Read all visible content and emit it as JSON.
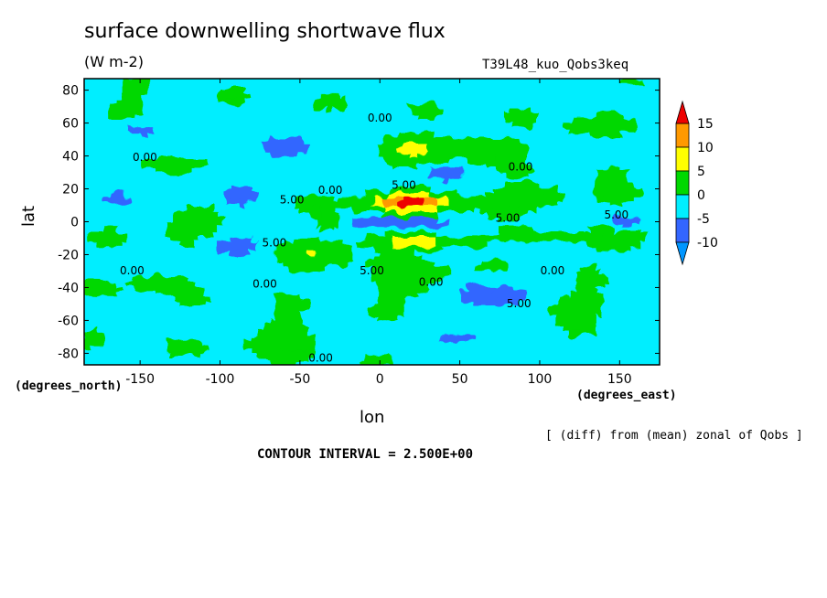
{
  "figure": {
    "title": "surface downwelling shortwave flux",
    "units": "(W m-2)",
    "run_label": "T39L48_kuo_Qobs3keq",
    "x_unit_left": "(degrees_north)",
    "x_unit_right": "(degrees_east)",
    "xlabel": "lon",
    "ylabel": "lat",
    "note": "[ (diff) from (mean) zonal of Qobs ]",
    "contour_interval": "CONTOUR INTERVAL = 2.500E+00"
  },
  "chart_data": {
    "type": "heatmap",
    "title": "surface downwelling shortwave flux",
    "subtitle": "(W m-2)",
    "xlabel": "lon",
    "ylabel": "lat",
    "xlim": [
      -185,
      175
    ],
    "ylim": [
      -87,
      87
    ],
    "x_ticks": [
      -150,
      -100,
      -50,
      0,
      50,
      100,
      150
    ],
    "y_ticks": [
      -80,
      -60,
      -40,
      -20,
      0,
      20,
      40,
      60,
      80
    ],
    "contour_interval": 2.5,
    "colorbar": {
      "levels": [
        -10,
        -5,
        0,
        5,
        10,
        15
      ],
      "labels": [
        "15",
        "10",
        "5",
        "0",
        "-5",
        "-10"
      ],
      "bins": [
        {
          "range": [
            -15,
            -10
          ],
          "color": "#0096ff"
        },
        {
          "range": [
            -10,
            -5
          ],
          "color": "#3366ff"
        },
        {
          "range": [
            -5,
            0
          ],
          "color": "#00eeff"
        },
        {
          "range": [
            0,
            5
          ],
          "color": "#00d800"
        },
        {
          "range": [
            5,
            10
          ],
          "color": "#ffff00"
        },
        {
          "range": [
            10,
            15
          ],
          "color": "#ff9900"
        },
        {
          "range": [
            15,
            20
          ],
          "color": "#ee0000"
        }
      ]
    },
    "contour_labels": [
      {
        "text": "0.00",
        "lon": -147,
        "lat": 37
      },
      {
        "text": "0.00",
        "lon": 0,
        "lat": 61
      },
      {
        "text": "0.00",
        "lon": 88,
        "lat": 31
      },
      {
        "text": "5.00",
        "lon": -55,
        "lat": 11
      },
      {
        "text": "5.00",
        "lon": 15,
        "lat": 20
      },
      {
        "text": "0.00",
        "lon": -31,
        "lat": 17
      },
      {
        "text": "5.00",
        "lon": 80,
        "lat": 0
      },
      {
        "text": "5.00",
        "lon": 148,
        "lat": 2
      },
      {
        "text": "5.00",
        "lon": -66,
        "lat": -15
      },
      {
        "text": "0.00",
        "lon": -155,
        "lat": -32
      },
      {
        "text": "5.00",
        "lon": -5,
        "lat": -32
      },
      {
        "text": "0.00",
        "lon": 32,
        "lat": -39
      },
      {
        "text": "0.00",
        "lon": 108,
        "lat": -32
      },
      {
        "text": "0.00",
        "lon": -72,
        "lat": -40
      },
      {
        "text": "5.00",
        "lon": 87,
        "lat": -52
      },
      {
        "text": "0.00",
        "lon": -37,
        "lat": -85
      }
    ]
  }
}
